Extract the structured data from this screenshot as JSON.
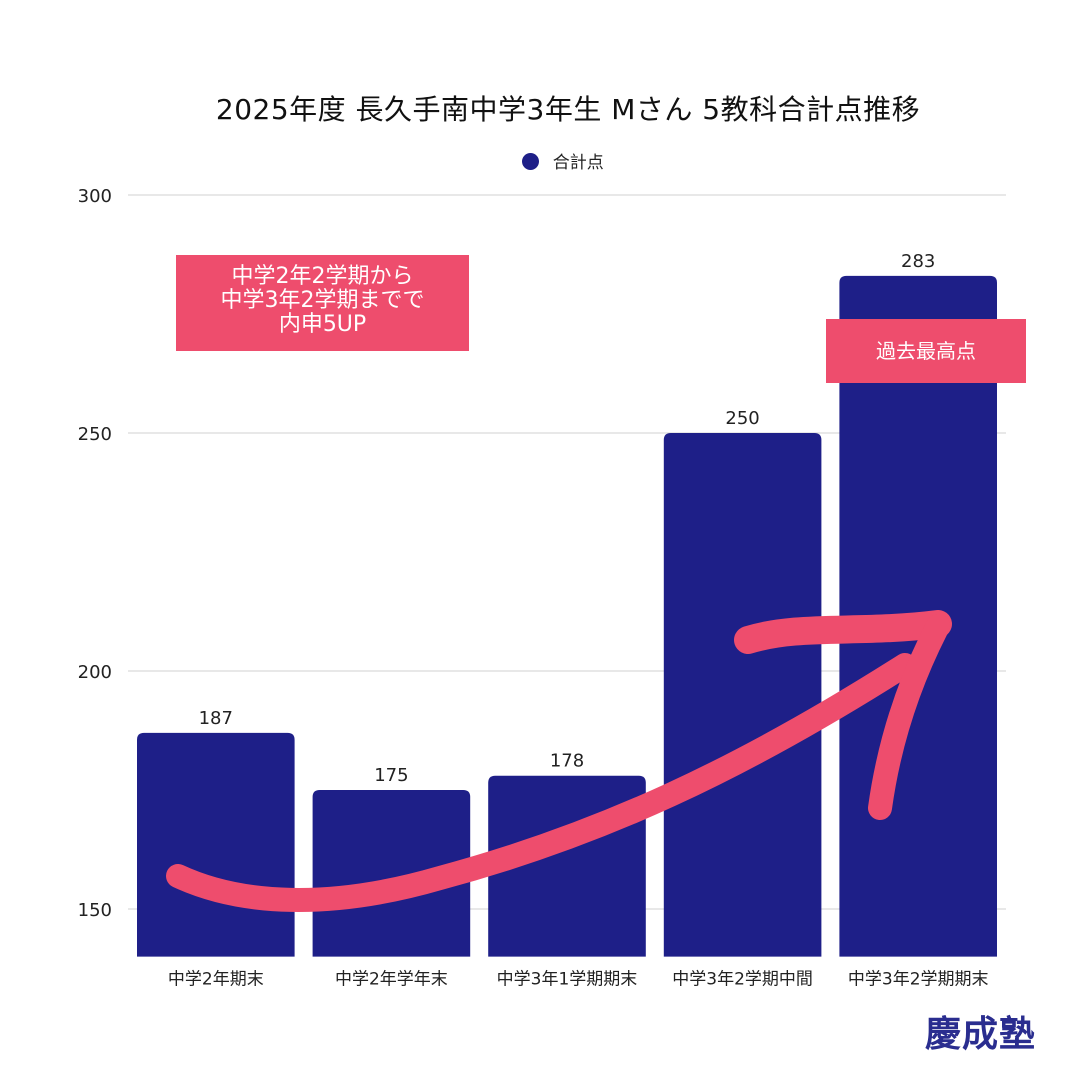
{
  "chart_data": {
    "type": "bar",
    "title": "2025年度 長久手南中学3年生 Mさん 5教科合計点推移",
    "legend": {
      "position": "top-center",
      "entries": [
        "合計点"
      ]
    },
    "categories": [
      "中学2年期末",
      "中学2年学年末",
      "中学3年1学期期末",
      "中学3年2学期中間",
      "中学3年2学期期末"
    ],
    "series": [
      {
        "name": "合計点",
        "values": [
          187,
          175,
          178,
          250,
          283
        ],
        "color": "#1e1f88"
      }
    ],
    "ylim": [
      140,
      300
    ],
    "yticks": [
      150,
      200,
      250,
      300
    ],
    "grid": true,
    "data_labels": [
      "187",
      "175",
      "178",
      "250",
      "283"
    ],
    "annotations": {
      "left_callout": [
        "中学2年2学期から",
        "中学3年2学期までで",
        "内申5UP"
      ],
      "right_callout": "過去最高点",
      "arrow": "rising-trend",
      "callout_color": "#ee4d6d",
      "arrow_color": "#ee4d6d"
    }
  },
  "brand": {
    "name": "慶成塾",
    "color": "#2a2d8f"
  }
}
